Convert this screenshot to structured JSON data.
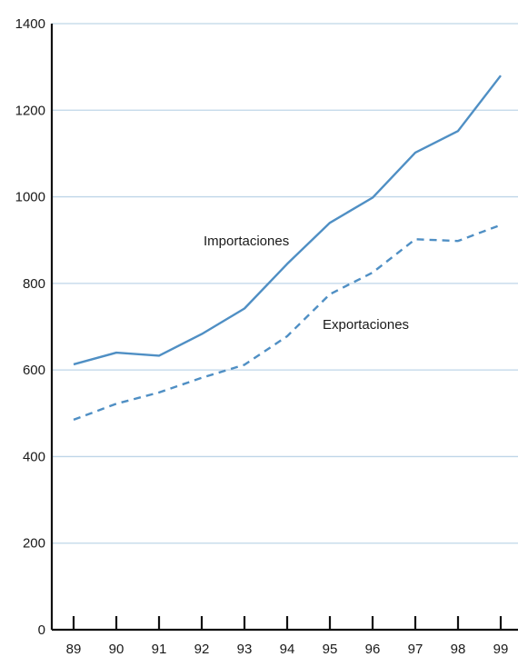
{
  "chart_data": {
    "type": "line",
    "x": [
      "89",
      "90",
      "91",
      "92",
      "93",
      "94",
      "95",
      "96",
      "97",
      "98",
      "99"
    ],
    "ylim": [
      0,
      1400
    ],
    "yticks": [
      0,
      200,
      400,
      600,
      800,
      1000,
      1200,
      1400
    ],
    "grid": true,
    "series": [
      {
        "name": "Importaciones",
        "style": "solid",
        "color": "#4f8fc4",
        "values": [
          613,
          640,
          633,
          683,
          742,
          845,
          940,
          998,
          1102,
          1152,
          1280
        ]
      },
      {
        "name": "Exportaciones",
        "style": "dashed",
        "color": "#4f8fc4",
        "values": [
          485,
          522,
          548,
          582,
          612,
          678,
          775,
          825,
          902,
          898,
          935
        ]
      }
    ]
  }
}
